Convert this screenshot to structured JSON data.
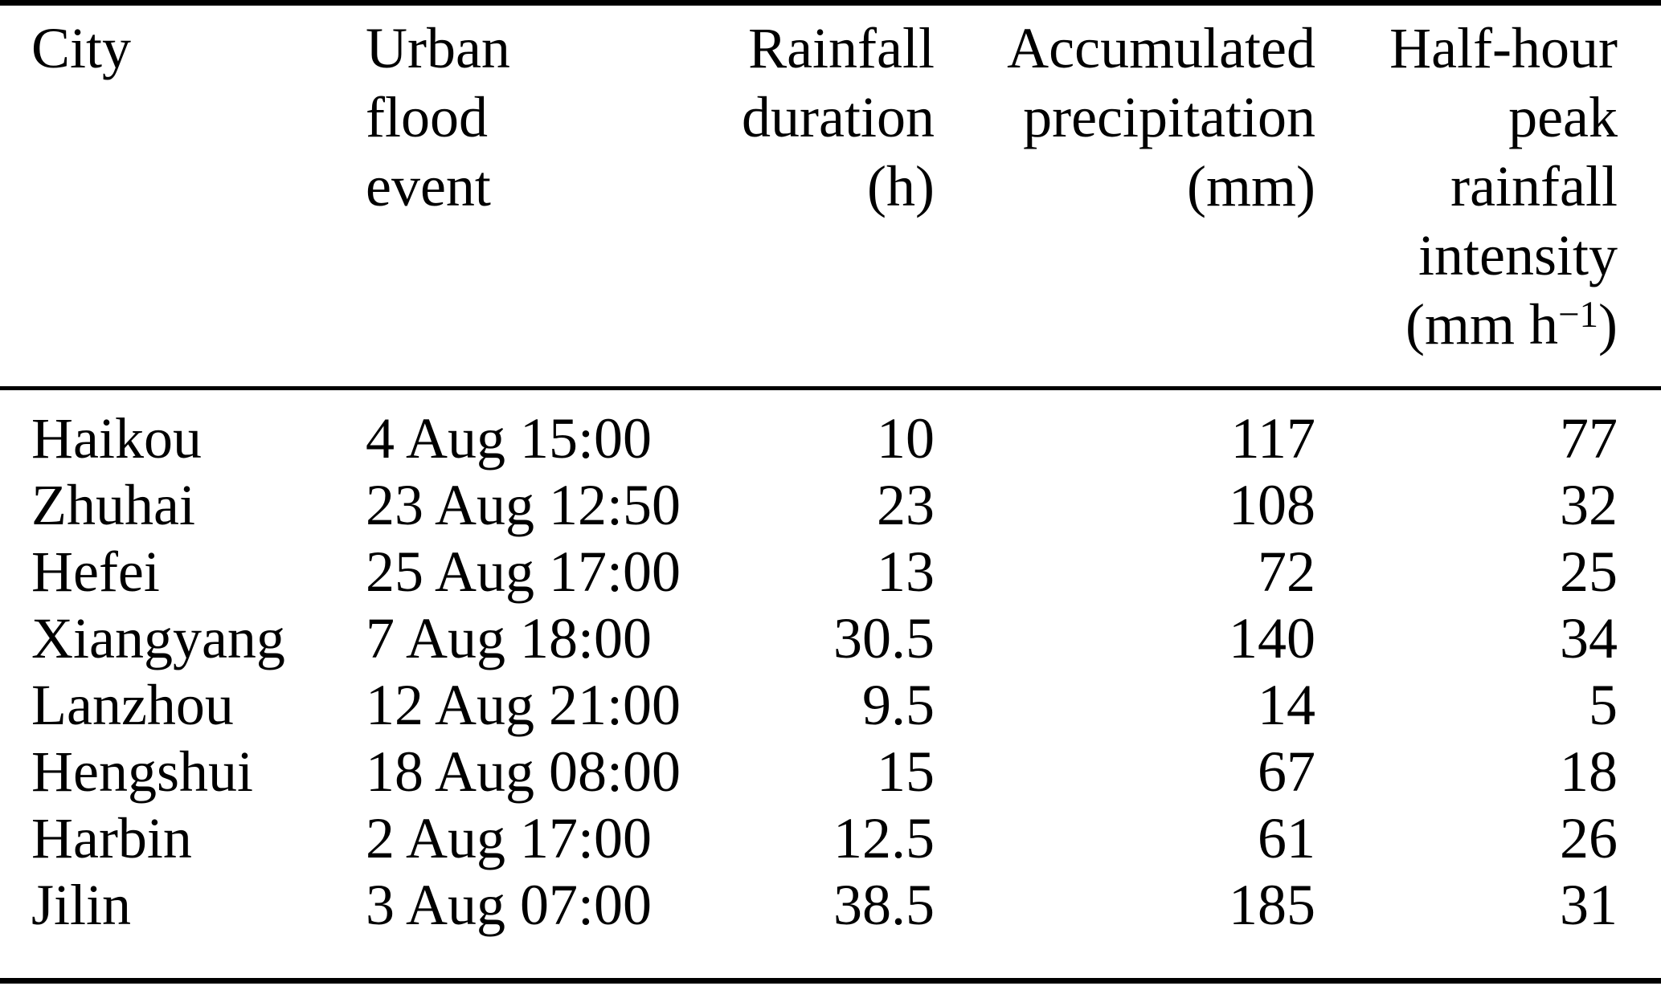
{
  "table": {
    "description": "Urban flood events table",
    "colors": {
      "text": "#000000",
      "background": "#ffffff",
      "rule": "#000000"
    },
    "columns": [
      {
        "id": "city",
        "align": "left",
        "lines": [
          "City"
        ]
      },
      {
        "id": "event",
        "align": "left",
        "lines": [
          "Urban",
          "flood",
          "event"
        ]
      },
      {
        "id": "duration",
        "align": "right",
        "lines": [
          "Rainfall",
          "duration",
          "(h)"
        ]
      },
      {
        "id": "precip",
        "align": "right",
        "lines": [
          "Accumulated",
          "precipitation",
          "(mm)"
        ]
      },
      {
        "id": "intensity",
        "align": "right",
        "lines": [
          "Half-hour",
          "peak",
          "rainfall",
          "intensity"
        ],
        "unit_prefix": "(mm h",
        "unit_sup": "−1",
        "unit_suffix": ")"
      }
    ],
    "rows": [
      {
        "city": "Haikou",
        "event": "4 Aug 15:00",
        "duration_h": "10",
        "precip_mm": "117",
        "intensity_mm_h": "77"
      },
      {
        "city": "Zhuhai",
        "event": "23 Aug 12:50",
        "duration_h": "23",
        "precip_mm": "108",
        "intensity_mm_h": "32"
      },
      {
        "city": "Hefei",
        "event": "25 Aug 17:00",
        "duration_h": "13",
        "precip_mm": "72",
        "intensity_mm_h": "25"
      },
      {
        "city": "Xiangyang",
        "event": "7 Aug 18:00",
        "duration_h": "30.5",
        "precip_mm": "140",
        "intensity_mm_h": "34"
      },
      {
        "city": "Lanzhou",
        "event": "12 Aug 21:00",
        "duration_h": "9.5",
        "precip_mm": "14",
        "intensity_mm_h": "5"
      },
      {
        "city": "Hengshui",
        "event": "18 Aug 08:00",
        "duration_h": "15",
        "precip_mm": "67",
        "intensity_mm_h": "18"
      },
      {
        "city": "Harbin",
        "event": "2 Aug 17:00",
        "duration_h": "12.5",
        "precip_mm": "61",
        "intensity_mm_h": "26"
      },
      {
        "city": "Jilin",
        "event": "3 Aug 07:00",
        "duration_h": "38.5",
        "precip_mm": "185",
        "intensity_mm_h": "31"
      }
    ]
  }
}
